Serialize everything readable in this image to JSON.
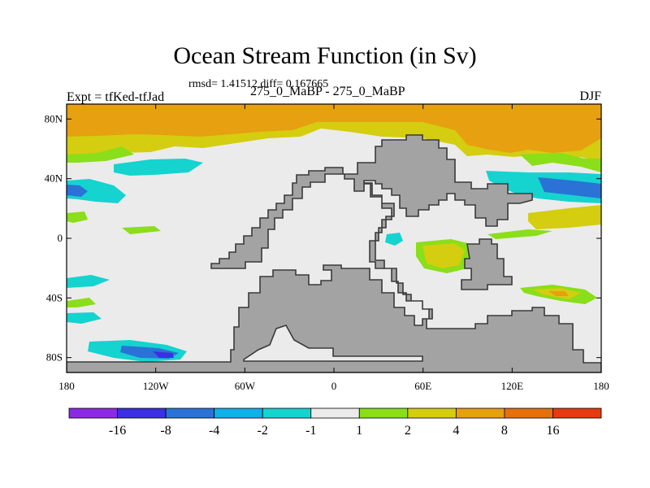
{
  "title": "Ocean Stream Function (in Sv)",
  "stats": "rmsd= 1.41512 diff= 0.167665",
  "left_label": "Expt = tfKed-tfJad",
  "center_label": "275_0_MaBP - 275_0_MaBP",
  "right_label": "DJF",
  "map": {
    "projection": "cylindrical equidistant",
    "lon_range": [
      -180,
      180
    ],
    "lat_range": [
      -90,
      90
    ],
    "lat_ticks": [
      {
        "value": 80,
        "label": "80N"
      },
      {
        "value": 40,
        "label": "40N"
      },
      {
        "value": 0,
        "label": "0"
      },
      {
        "value": -40,
        "label": "40S"
      },
      {
        "value": -80,
        "label": "80S"
      }
    ],
    "lon_ticks": [
      {
        "value": -180,
        "label": "180"
      },
      {
        "value": -120,
        "label": "120W"
      },
      {
        "value": -60,
        "label": "60W"
      },
      {
        "value": 0,
        "label": "0"
      },
      {
        "value": 60,
        "label": "60E"
      },
      {
        "value": 120,
        "label": "120E"
      },
      {
        "value": 180,
        "label": "180"
      }
    ],
    "background_bin": "1",
    "land_color": "#a3a3a3"
  },
  "colorbar": {
    "labels": [
      "-16",
      "-8",
      "-4",
      "-2",
      "-1",
      "1",
      "2",
      "4",
      "8",
      "16"
    ],
    "colors": [
      "#8a2be2",
      "#3b2fe0",
      "#2a72d6",
      "#10b0e8",
      "#15d3cf",
      "#ebebeb",
      "#8ade1a",
      "#d4cd10",
      "#e6a010",
      "#e4700e",
      "#e63a10"
    ]
  }
}
